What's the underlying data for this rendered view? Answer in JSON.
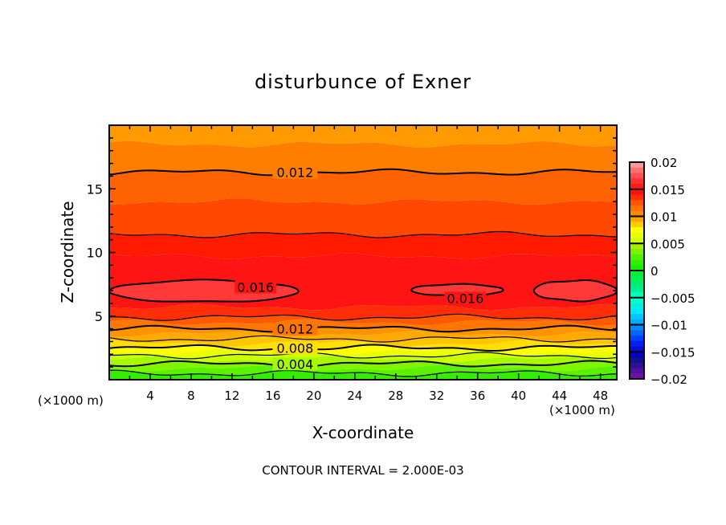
{
  "chart_data": {
    "type": "contour",
    "title": "disturbunce of Exner",
    "xlabel": "X-coordinate",
    "ylabel": "Z-coordinate",
    "x_unit_label": "(×1000 m)",
    "x_unit_label_right": "(×1000 m)",
    "footer": "CONTOUR INTERVAL = 2.000E-03",
    "xlim": [
      0,
      49.6
    ],
    "ylim": [
      0,
      20
    ],
    "x_ticks": [
      4,
      8,
      12,
      16,
      20,
      24,
      28,
      32,
      36,
      40,
      44,
      48
    ],
    "x_tick_labels": [
      "4",
      "8",
      "12",
      "16",
      "20",
      "24",
      "28",
      "32",
      "36",
      "40",
      "44",
      "48"
    ],
    "y_ticks": [
      5,
      10,
      15
    ],
    "y_tick_labels": [
      "5",
      "10",
      "15"
    ],
    "contour_interval": 0.002,
    "fill_bands": [
      {
        "from": 0.0,
        "to": 0.5,
        "color": "#33ee00"
      },
      {
        "from": 0.5,
        "to": 0.9,
        "color": "#5af200"
      },
      {
        "from": 0.9,
        "to": 1.24,
        "color": "#80f500"
      },
      {
        "from": 1.24,
        "to": 1.6,
        "color": "#a6fa00"
      },
      {
        "from": 1.6,
        "to": 1.9,
        "color": "#ccff00"
      },
      {
        "from": 1.9,
        "to": 2.2,
        "color": "#eaff00"
      },
      {
        "from": 2.2,
        "to": 2.5,
        "color": "#ffff00"
      },
      {
        "from": 2.5,
        "to": 2.85,
        "color": "#ffe000"
      },
      {
        "from": 2.85,
        "to": 3.2,
        "color": "#ffc600"
      },
      {
        "from": 3.2,
        "to": 3.6,
        "color": "#ffaa00"
      },
      {
        "from": 3.6,
        "to": 4.0,
        "color": "#ff9400"
      },
      {
        "from": 4.0,
        "to": 4.5,
        "color": "#ff7700"
      },
      {
        "from": 4.5,
        "to": 4.9,
        "color": "#ff5a00"
      },
      {
        "from": 4.9,
        "to": 5.7,
        "color": "#ff2e08"
      },
      {
        "from": 5.7,
        "to": 9.7,
        "color": "#ff1414"
      },
      {
        "from": 9.7,
        "to": 11.4,
        "color": "#ff1a00"
      },
      {
        "from": 11.4,
        "to": 14.0,
        "color": "#ff4800"
      },
      {
        "from": 14.0,
        "to": 16.3,
        "color": "#ff6200"
      },
      {
        "from": 16.3,
        "to": 18.5,
        "color": "#ff7e00"
      },
      {
        "from": 18.5,
        "to": 20.0,
        "color": "#ff9a00"
      }
    ],
    "contour_lines": [
      {
        "level": 0.002,
        "z": 0.5,
        "label": ""
      },
      {
        "level": 0.004,
        "z": 1.24,
        "label": "0.004"
      },
      {
        "level": 0.006,
        "z": 1.9,
        "label": ""
      },
      {
        "level": 0.008,
        "z": 2.5,
        "label": "0.008"
      },
      {
        "level": 0.01,
        "z": 3.2,
        "label": ""
      },
      {
        "level": 0.012,
        "z": 4.0,
        "label": "0.012"
      },
      {
        "level": 0.014,
        "z": 4.9,
        "label": ""
      },
      {
        "level": 0.014,
        "z": 11.4,
        "label": ""
      },
      {
        "level": 0.012,
        "z": 16.3,
        "label": "0.012"
      }
    ],
    "closed_contours": [
      {
        "level": 0.016,
        "x": [
          0,
          18.5
        ],
        "z": [
          6.1,
          7.8
        ],
        "label": "0.016",
        "label_x": 14.3,
        "label_z": 7.3
      },
      {
        "level": 0.016,
        "x": [
          29.5,
          38.5
        ],
        "z": [
          6.6,
          7.5
        ],
        "label": "0.016",
        "label_x": 34.8,
        "label_z": 6.4
      },
      {
        "level": 0.016,
        "x": [
          41.5,
          49.6
        ],
        "z": [
          6.2,
          7.8
        ],
        "label": "",
        "label_x": 0,
        "label_z": 0
      }
    ],
    "oval_color": "#ff3838",
    "colorbar": {
      "range": [
        -0.02,
        0.02
      ],
      "tick_labels": [
        "0.02",
        "0.015",
        "0.01",
        "0.005",
        "0",
        "-0.005",
        "-0.01",
        "-0.015",
        "-0.02"
      ],
      "colors": [
        "#ff9999",
        "#ff7070",
        "#ff5050",
        "#ff3030",
        "#ff1a1a",
        "#ff1010",
        "#ff3000",
        "#ff5500",
        "#ff7000",
        "#ff8a00",
        "#ffa500",
        "#ffcc00",
        "#ffff00",
        "#e6ff00",
        "#ccff00",
        "#a8f000",
        "#80f000",
        "#55f000",
        "#30f000",
        "#10f000",
        "#00ee30",
        "#00ee50",
        "#00ee70",
        "#00f090",
        "#00ffbb",
        "#00ffcc",
        "#00f0e0",
        "#00e8ff",
        "#00c8ff",
        "#00aaff",
        "#0088ff",
        "#0066ff",
        "#0040ff",
        "#0020f0",
        "#0010e0",
        "#0000cc",
        "#101090",
        "#301090",
        "#5010a0",
        "#7010a8"
      ]
    }
  }
}
